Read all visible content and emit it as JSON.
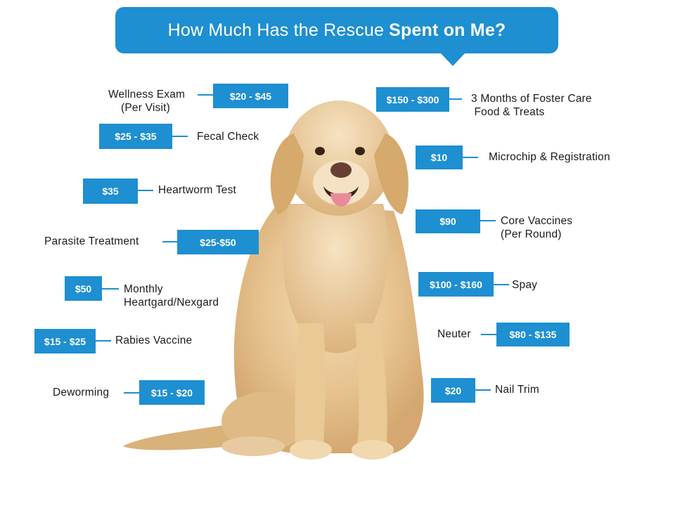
{
  "title": {
    "regular": "How Much Has the Rescue",
    "bold": "Spent on Me?"
  },
  "colors": {
    "accent": "#1e8fd1",
    "text": "#1a1a1a"
  },
  "image": {
    "subject": "golden-retriever-sitting"
  },
  "costs": {
    "wellness_exam": {
      "price": "$20 - $45",
      "label": "Wellness Exam\n    (Per Visit)"
    },
    "fecal_check": {
      "price": "$25 - $35",
      "label": "Fecal Check"
    },
    "heartworm_test": {
      "price": "$35",
      "label": "Heartworm Test"
    },
    "parasite_treatment": {
      "price": "$25-$50",
      "label": "Parasite Treatment"
    },
    "heartgard": {
      "price": "$50",
      "label": "Monthly\nHeartgard/Nexgard"
    },
    "rabies_vaccine": {
      "price": "$15 - $25",
      "label": "Rabies Vaccine"
    },
    "deworming": {
      "price": "$15 - $20",
      "label": "Deworming"
    },
    "foster_care": {
      "price": "$150 - $300",
      "label": "3 Months of Foster Care\n Food & Treats"
    },
    "microchip": {
      "price": "$10",
      "label": "Microchip & Registration"
    },
    "core_vaccines": {
      "price": "$90",
      "label": "Core Vaccines\n(Per Round)"
    },
    "spay": {
      "price": "$100 - $160",
      "label": "Spay"
    },
    "neuter": {
      "price": "$80 - $135",
      "label": "Neuter"
    },
    "nail_trim": {
      "price": "$20",
      "label": "Nail Trim"
    }
  }
}
